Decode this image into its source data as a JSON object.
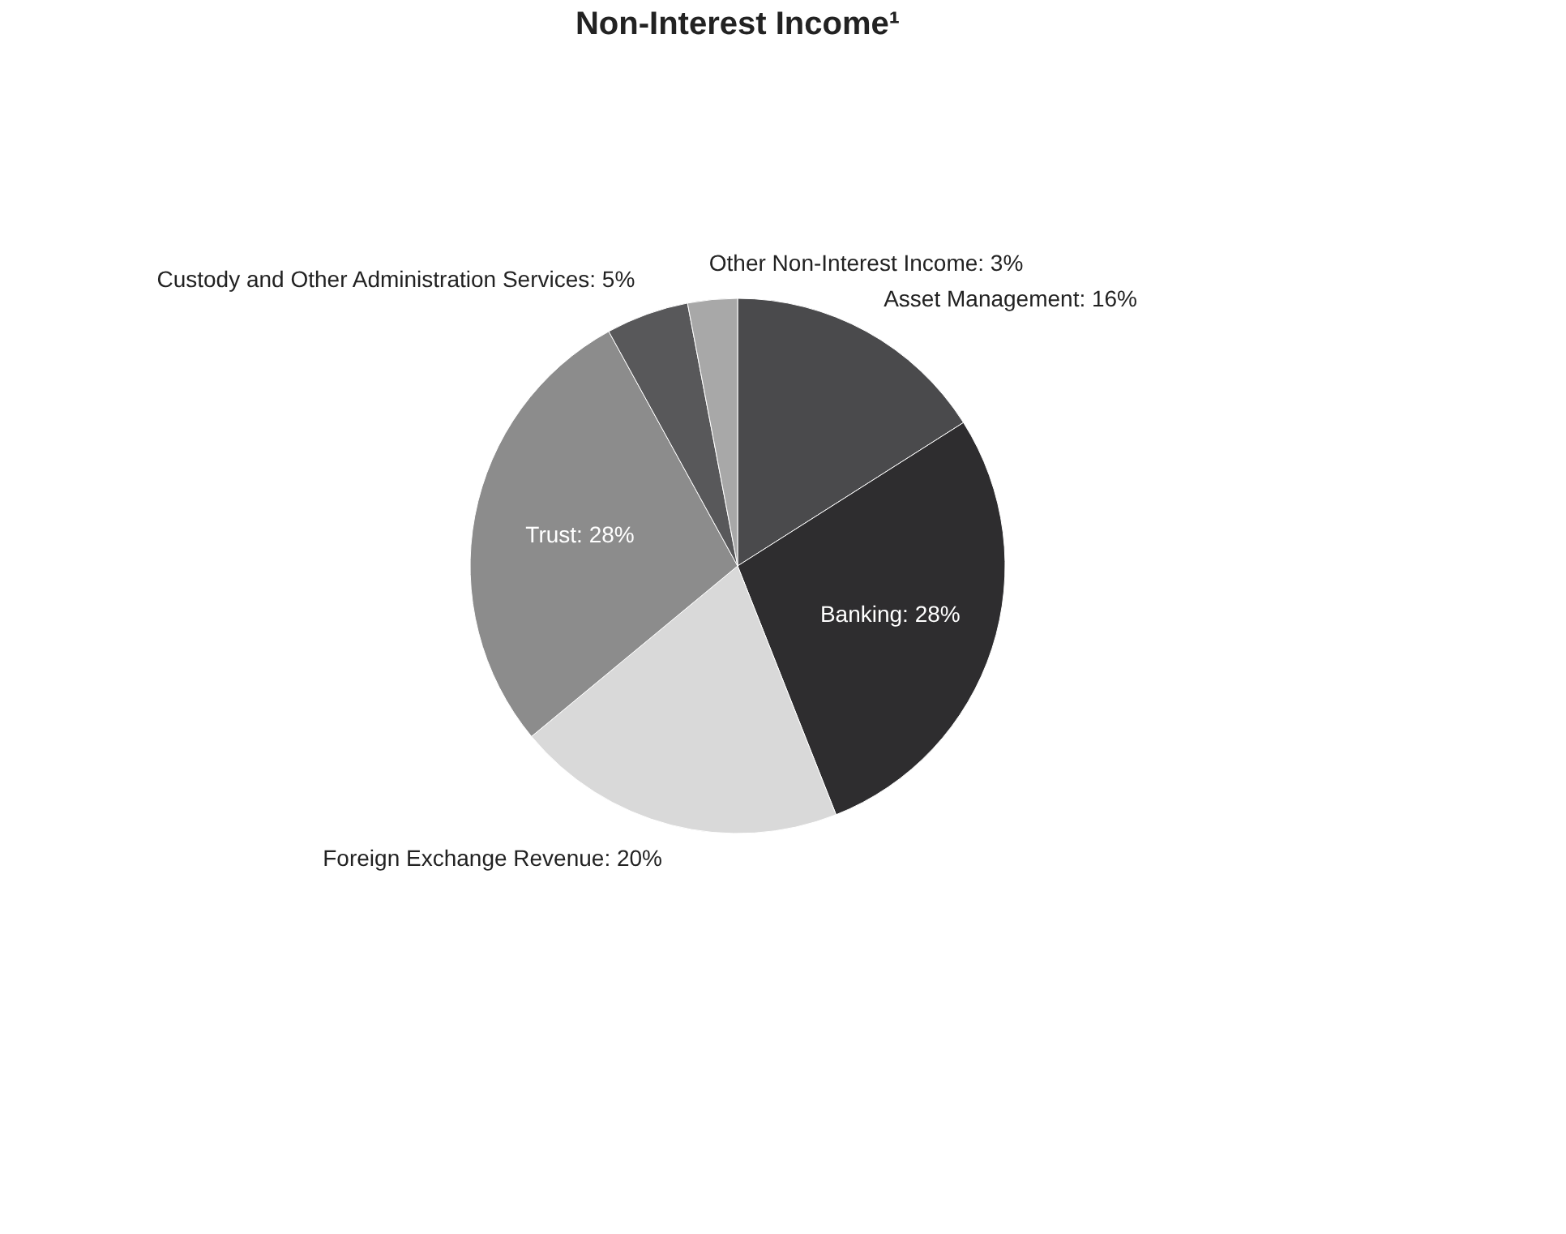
{
  "chart_data": {
    "type": "pie",
    "title": "Non-Interest Income¹",
    "categories": [
      "Asset Management: 16%",
      "Banking: 28%",
      "Foreign Exchange Revenue: 20%",
      "Trust: 28%",
      "Custody and Other Administration Services: 5%",
      "Other Non-Interest Income: 3%"
    ],
    "values": [
      16,
      28,
      20,
      28,
      5,
      3
    ],
    "colors": [
      "#4a4a4c",
      "#2e2d2f",
      "#d9d9d9",
      "#8c8c8c",
      "#58585a",
      "#a8a8a8"
    ],
    "legend": false
  }
}
